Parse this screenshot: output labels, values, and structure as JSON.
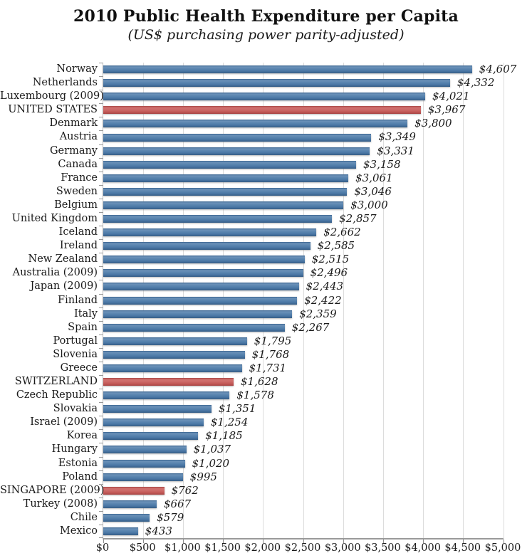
{
  "title": "2010 Public Health Expenditure per Capita",
  "subtitle": "(US$ purchasing power parity-adjusted)",
  "colors": {
    "bar_default": "#4a76a4",
    "bar_highlight": "#c0504d",
    "gridline": "#dcdcdc",
    "axis": "#9a9a9a",
    "text": "#1a1a1a"
  },
  "chart_data": {
    "type": "bar",
    "orientation": "horizontal",
    "title": "2010 Public Health Expenditure per Capita",
    "subtitle": "(US$ purchasing power parity-adjusted)",
    "xlabel": "",
    "ylabel": "",
    "xlim": [
      0,
      5000
    ],
    "grid": "vertical-major",
    "legend": "none",
    "categories": [
      "Norway",
      "Netherlands",
      "Luxembourg (2009)",
      "UNITED STATES",
      "Denmark",
      "Austria",
      "Germany",
      "Canada",
      "France",
      "Sweden",
      "Belgium",
      "United Kingdom",
      "Iceland",
      "Ireland",
      "New Zealand",
      "Australia (2009)",
      "Japan (2009)",
      "Finland",
      "Italy",
      "Spain",
      "Portugal",
      "Slovenia",
      "Greece",
      "SWITZERLAND",
      "Czech Republic",
      "Slovakia",
      "Israel (2009)",
      "Korea",
      "Hungary",
      "Estonia",
      "Poland",
      "SINGAPORE (2009)",
      "Turkey (2008)",
      "Chile",
      "Mexico"
    ],
    "values": [
      4607,
      4332,
      4021,
      3967,
      3800,
      3349,
      3331,
      3158,
      3061,
      3046,
      3000,
      2857,
      2662,
      2585,
      2515,
      2496,
      2443,
      2422,
      2359,
      2267,
      1795,
      1768,
      1731,
      1628,
      1578,
      1351,
      1254,
      1185,
      1037,
      1020,
      995,
      762,
      667,
      579,
      433
    ],
    "value_labels": [
      "$4,607",
      "$4,332",
      "$4,021",
      "$3,967",
      "$3,800",
      "$3,349",
      "$3,331",
      "$3,158",
      "$3,061",
      "$3,046",
      "$3,000",
      "$2,857",
      "$2,662",
      "$2,585",
      "$2,515",
      "$2,496",
      "$2,443",
      "$2,422",
      "$2,359",
      "$2,267",
      "$1,795",
      "$1,768",
      "$1,731",
      "$1,628",
      "$1,578",
      "$1,351",
      "$1,254",
      "$1,185",
      "$1,037",
      "$1,020",
      "$995",
      "$762",
      "$667",
      "$579",
      "$433"
    ],
    "highlighted_indices": [
      3,
      23,
      31
    ],
    "x_ticks": [
      0,
      500,
      1000,
      1500,
      2000,
      2500,
      3000,
      3500,
      4000,
      4500,
      5000
    ],
    "x_tick_labels": [
      "$0",
      "$500",
      "$1,000",
      "$1,500",
      "$2,000",
      "$2,500",
      "$3,000",
      "$3,500",
      "$4,000",
      "$4,500",
      "$5,000"
    ]
  }
}
